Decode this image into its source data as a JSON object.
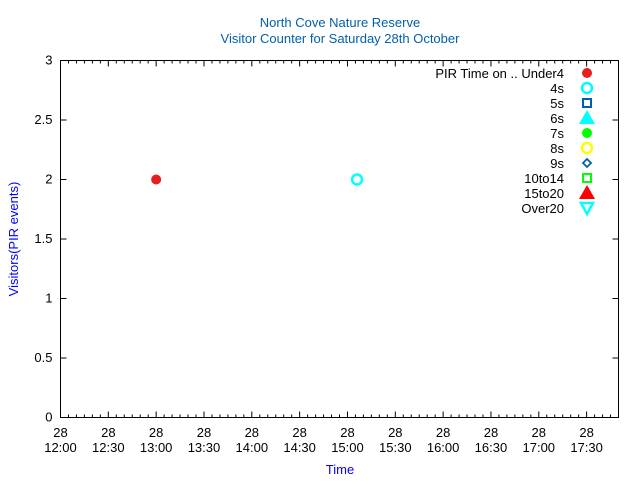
{
  "chart_data": {
    "type": "scatter",
    "title": "North Cove Nature Reserve",
    "subtitle": "Visitor Counter for Saturday 28th October",
    "xlabel": "Time",
    "ylabel": "Visitors(PIR events)",
    "xlim": [
      "28 12:00",
      "28 17:50"
    ],
    "ylim": [
      0,
      3
    ],
    "x_ticks": [
      "12:00",
      "12:30",
      "13:00",
      "13:30",
      "14:00",
      "14:30",
      "15:00",
      "15:30",
      "16:00",
      "16:30",
      "17:00",
      "17:30"
    ],
    "x_tick_day": "28",
    "y_ticks": [
      "0",
      "0.5",
      "1",
      "1.5",
      "2",
      "2.5",
      "3"
    ],
    "grid": false,
    "legend_position": "top-right",
    "legend_title": "PIR Time on ..",
    "series": [
      {
        "name": "Under4",
        "color": "#e51e1e",
        "marker": "filled-circle",
        "points": [
          {
            "x": "28 13:00",
            "y": 2
          }
        ]
      },
      {
        "name": "4s",
        "color": "#00ffff",
        "marker": "open-circle",
        "points": [
          {
            "x": "28 15:06",
            "y": 2
          }
        ]
      },
      {
        "name": "5s",
        "color": "#0060ad",
        "marker": "open-square",
        "points": []
      },
      {
        "name": "6s",
        "color": "#00ffff",
        "marker": "filled-triangle",
        "points": []
      },
      {
        "name": "7s",
        "color": "#00ff00",
        "marker": "filled-circle",
        "points": []
      },
      {
        "name": "8s",
        "color": "#ffff00",
        "marker": "open-circle",
        "points": []
      },
      {
        "name": "9s",
        "color": "#0060ad",
        "marker": "open-diamond",
        "points": []
      },
      {
        "name": "10to14",
        "color": "#00ff00",
        "marker": "open-square",
        "points": []
      },
      {
        "name": "15to20",
        "color": "#ff0000",
        "marker": "filled-triangle",
        "points": []
      },
      {
        "name": "Over20",
        "color": "#00ffff",
        "marker": "open-triangle-down",
        "points": []
      }
    ],
    "colors": {
      "title": "#0060ad",
      "axis_label": "#0000ff"
    }
  }
}
